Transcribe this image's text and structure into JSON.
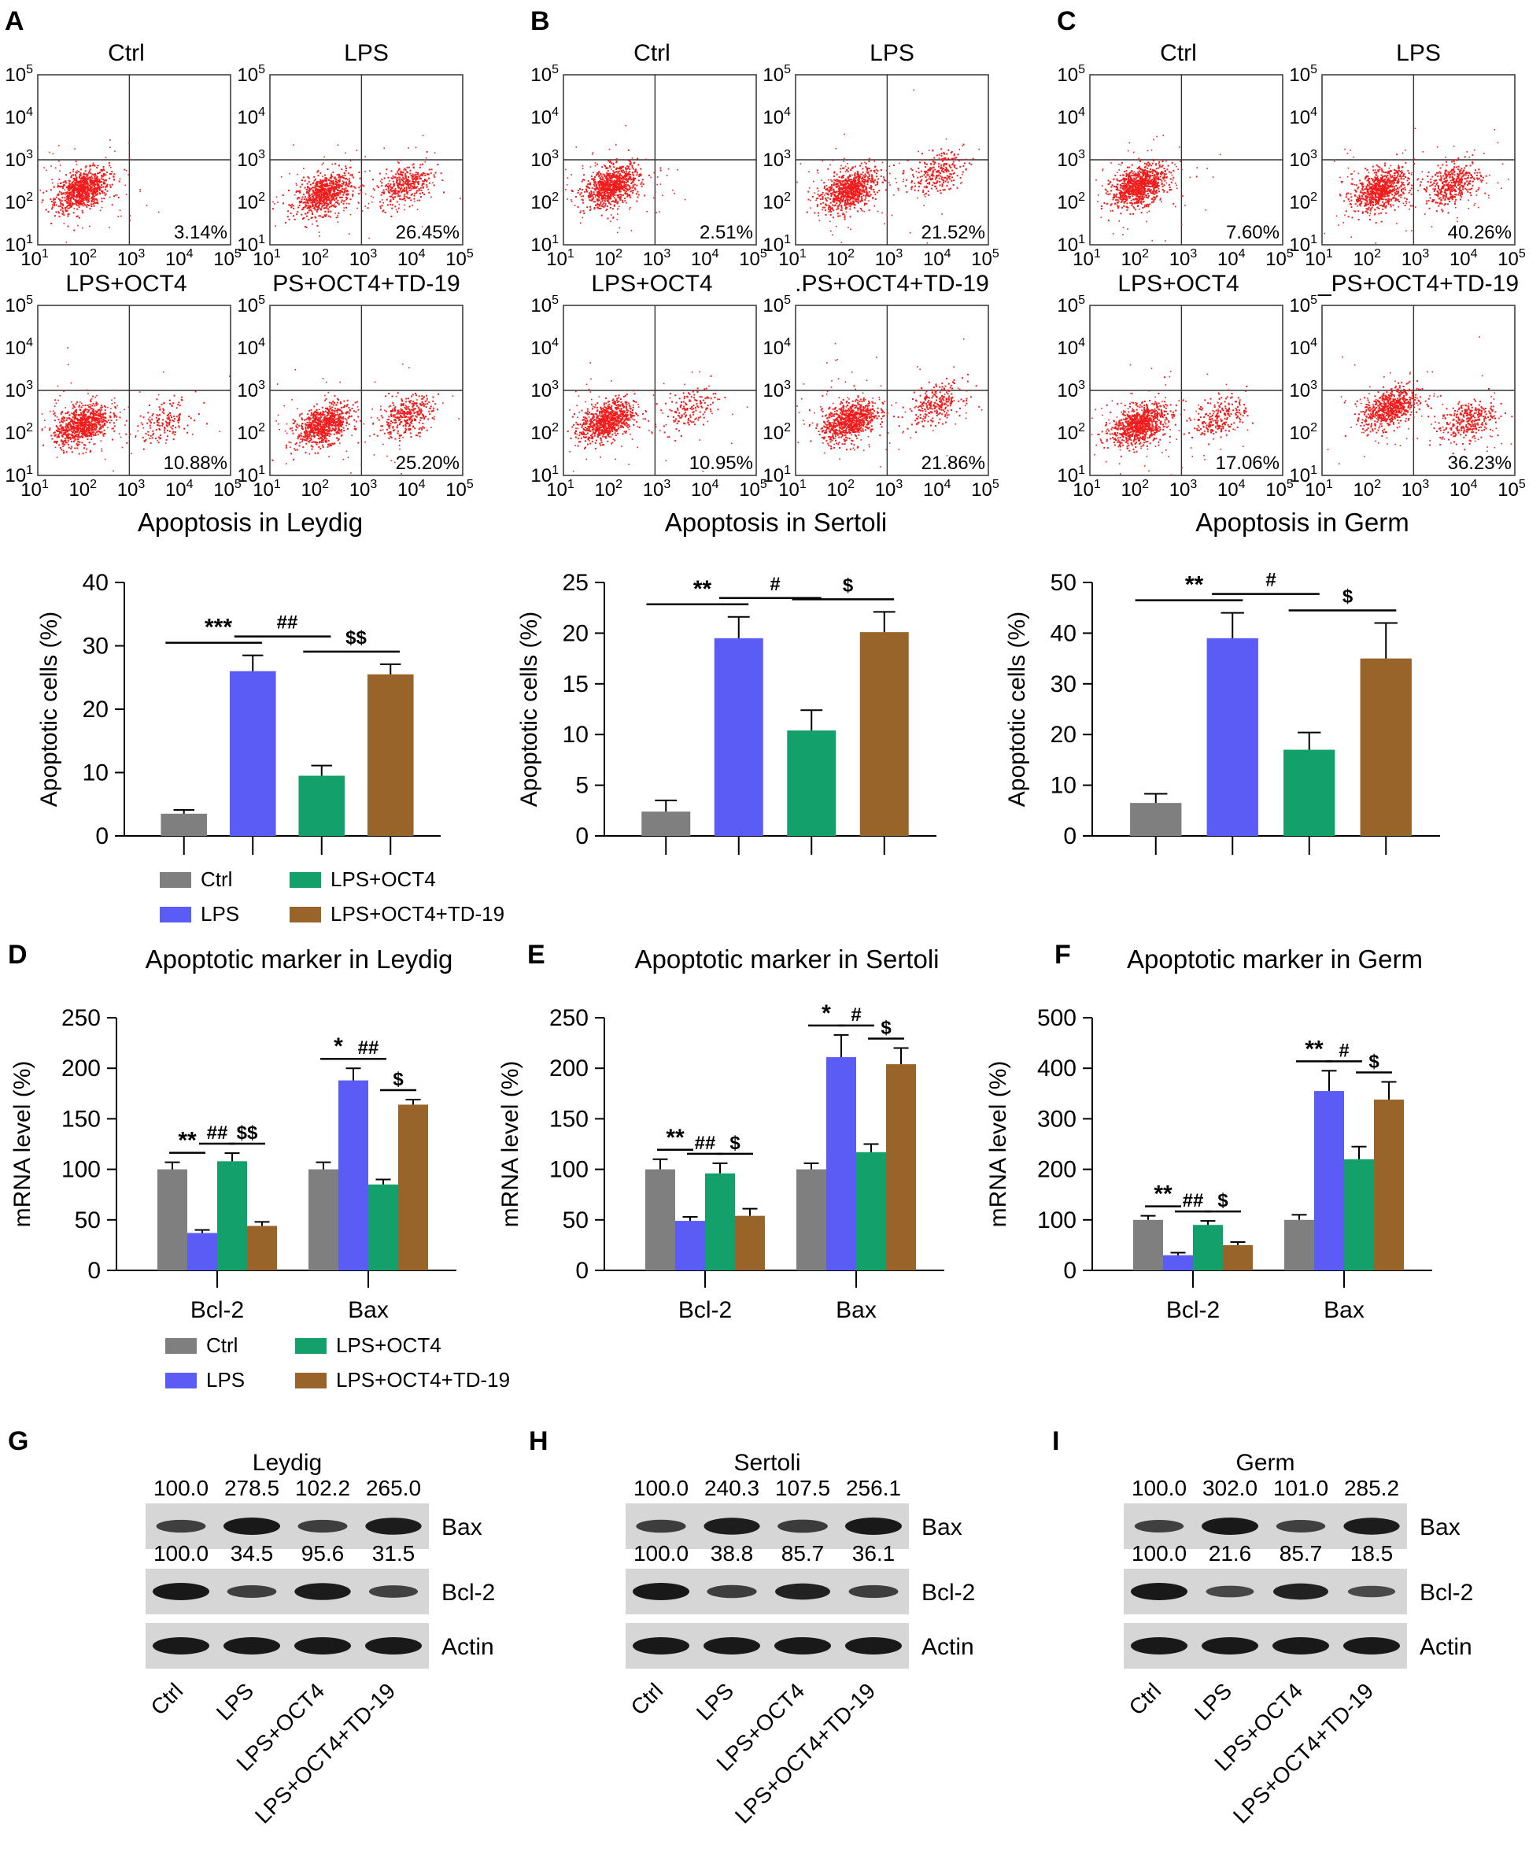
{
  "colors": {
    "ctrl": "#7f7f7f",
    "lps": "#5b5bf5",
    "oct4": "#13a06b",
    "td19": "#99642a",
    "dots": "#f01c1c"
  },
  "legend": {
    "ctrl": "Ctrl",
    "lps": "LPS",
    "oct4": "LPS+OCT4",
    "td19": "LPS+OCT4+TD-19"
  },
  "flow": {
    "panels": [
      {
        "letter": "A",
        "xlabel": "Apoptosis in Leydig",
        "plots": [
          {
            "title": "Ctrl",
            "pct": "3.14%",
            "clusters": [
              {
                "x": 1.9,
                "y": 2.3,
                "n": 800
              }
            ]
          },
          {
            "title": "LPS",
            "pct": "26.45%",
            "clusters": [
              {
                "x": 2.1,
                "y": 2.2,
                "n": 700
              },
              {
                "x": 3.8,
                "y": 2.45,
                "n": 350
              }
            ]
          },
          {
            "title": "LPS+OCT4",
            "pct": "10.88%",
            "clusters": [
              {
                "x": 1.9,
                "y": 2.2,
                "n": 750
              },
              {
                "x": 3.6,
                "y": 2.3,
                "n": 150
              }
            ]
          },
          {
            "title": "PS+OCT4+TD-19",
            "pct": "25.20%",
            "clusters": [
              {
                "x": 2.1,
                "y": 2.2,
                "n": 700
              },
              {
                "x": 3.8,
                "y": 2.4,
                "n": 320
              }
            ]
          }
        ]
      },
      {
        "letter": "B",
        "xlabel": "Apoptosis in Sertoli",
        "plots": [
          {
            "title": "Ctrl",
            "pct": "2.51%",
            "clusters": [
              {
                "x": 2.0,
                "y": 2.4,
                "n": 800
              }
            ]
          },
          {
            "title": "LPS",
            "pct": "21.52%",
            "clusters": [
              {
                "x": 2.1,
                "y": 2.3,
                "n": 750
              },
              {
                "x": 3.9,
                "y": 2.7,
                "n": 250
              }
            ]
          },
          {
            "title": "LPS+OCT4",
            "pct": "10.95%",
            "clusters": [
              {
                "x": 1.9,
                "y": 2.3,
                "n": 750
              },
              {
                "x": 3.6,
                "y": 2.6,
                "n": 150
              }
            ]
          },
          {
            "title": ".PS+OCT4+TD-19",
            "pct": "21.86%",
            "clusters": [
              {
                "x": 2.1,
                "y": 2.3,
                "n": 750
              },
              {
                "x": 3.9,
                "y": 2.7,
                "n": 250
              }
            ]
          }
        ]
      },
      {
        "letter": "C",
        "xlabel": "Apoptosis in Germ",
        "plots": [
          {
            "title": "Ctrl",
            "pct": "7.60%",
            "clusters": [
              {
                "x": 2.0,
                "y": 2.4,
                "n": 850
              }
            ]
          },
          {
            "title": "LPS",
            "pct": "40.26%",
            "clusters": [
              {
                "x": 2.2,
                "y": 2.3,
                "n": 700
              },
              {
                "x": 3.7,
                "y": 2.45,
                "n": 400
              }
            ]
          },
          {
            "title": "LPS+OCT4",
            "pct": "17.06%",
            "clusters": [
              {
                "x": 2.0,
                "y": 2.2,
                "n": 800
              },
              {
                "x": 3.7,
                "y": 2.4,
                "n": 220
              }
            ]
          },
          {
            "title": "_PS+OCT4+TD-19",
            "pct": "36.23%",
            "clusters": [
              {
                "x": 2.4,
                "y": 2.6,
                "n": 600
              },
              {
                "x": 4.0,
                "y": 2.3,
                "n": 300
              }
            ]
          }
        ]
      }
    ]
  },
  "chart_data": [
    {
      "type": "bar",
      "title": "",
      "ylabel": "Apoptotic cells (%)",
      "ylim": [
        0,
        40
      ],
      "yticks": [
        0,
        10,
        20,
        30,
        40
      ],
      "categories": [
        "Ctrl",
        "LPS",
        "LPS+OCT4",
        "LPS+OCT4+TD-19"
      ],
      "values": [
        3.5,
        26.0,
        9.5,
        25.5
      ],
      "errors": [
        0.6,
        2.5,
        1.6,
        1.6
      ],
      "sig": [
        {
          "from": 0,
          "to": 1,
          "text": "***"
        },
        {
          "from": 1,
          "to": 2,
          "text": "##"
        },
        {
          "from": 2,
          "to": 3,
          "text": "$$"
        }
      ]
    },
    {
      "type": "bar",
      "title": "",
      "ylabel": "Apoptotic cells (%)",
      "ylim": [
        0,
        25
      ],
      "yticks": [
        0,
        5,
        10,
        15,
        20,
        25
      ],
      "categories": [
        "Ctrl",
        "LPS",
        "LPS+OCT4",
        "LPS+OCT4+TD-19"
      ],
      "values": [
        2.4,
        19.5,
        10.4,
        20.1
      ],
      "errors": [
        1.1,
        2.1,
        2.0,
        2.0
      ],
      "sig": [
        {
          "from": 0,
          "to": 1,
          "text": "**"
        },
        {
          "from": 1,
          "to": 2,
          "text": "#"
        },
        {
          "from": 2,
          "to": 3,
          "text": "$"
        }
      ]
    },
    {
      "type": "bar",
      "title": "",
      "ylabel": "Apoptotic cells (%)",
      "ylim": [
        0,
        50
      ],
      "yticks": [
        0,
        10,
        20,
        30,
        40,
        50
      ],
      "categories": [
        "Ctrl",
        "LPS",
        "LPS+OCT4",
        "LPS+OCT4+TD-19"
      ],
      "values": [
        6.5,
        39.0,
        17.0,
        35.0
      ],
      "errors": [
        1.8,
        5.0,
        3.4,
        7.0
      ],
      "sig": [
        {
          "from": 0,
          "to": 1,
          "text": "**"
        },
        {
          "from": 1,
          "to": 2,
          "text": "#"
        },
        {
          "from": 2,
          "to": 3,
          "text": "$"
        }
      ]
    },
    {
      "type": "bar",
      "letter": "D",
      "title": "Apoptotic marker in Leydig",
      "ylabel": "mRNA level (%)",
      "ylim": [
        0,
        250
      ],
      "yticks": [
        0,
        50,
        100,
        150,
        200,
        250
      ],
      "categories": [
        "Bcl-2",
        "Bax"
      ],
      "series": [
        {
          "name": "Ctrl",
          "values": [
            100,
            100
          ],
          "errors": [
            7,
            7
          ]
        },
        {
          "name": "LPS",
          "values": [
            37,
            188
          ],
          "errors": [
            3,
            12
          ]
        },
        {
          "name": "LPS+OCT4",
          "values": [
            108,
            85
          ],
          "errors": [
            8,
            5
          ]
        },
        {
          "name": "LPS+OCT4+TD-19",
          "values": [
            44,
            164
          ],
          "errors": [
            4,
            5
          ]
        }
      ],
      "sig": [
        {
          "group": 0,
          "from": 0,
          "to": 1,
          "text": "**"
        },
        {
          "group": 0,
          "from": 1,
          "to": 2,
          "text": "##"
        },
        {
          "group": 0,
          "from": 2,
          "to": 3,
          "text": "$$"
        },
        {
          "group": 1,
          "from": 0,
          "to": 1,
          "text": "*"
        },
        {
          "group": 1,
          "from": 1,
          "to": 2,
          "text": "##"
        },
        {
          "group": 1,
          "from": 2,
          "to": 3,
          "text": "$"
        }
      ]
    },
    {
      "type": "bar",
      "letter": "E",
      "title": "Apoptotic marker in Sertoli",
      "ylabel": "mRNA level (%)",
      "ylim": [
        0,
        250
      ],
      "yticks": [
        0,
        50,
        100,
        150,
        200,
        250
      ],
      "categories": [
        "Bcl-2",
        "Bax"
      ],
      "series": [
        {
          "name": "Ctrl",
          "values": [
            100,
            100
          ],
          "errors": [
            10,
            6
          ]
        },
        {
          "name": "LPS",
          "values": [
            49,
            211
          ],
          "errors": [
            4,
            22
          ]
        },
        {
          "name": "LPS+OCT4",
          "values": [
            96,
            117
          ],
          "errors": [
            10,
            8
          ]
        },
        {
          "name": "LPS+OCT4+TD-19",
          "values": [
            54,
            204
          ],
          "errors": [
            7,
            16
          ]
        }
      ],
      "sig": [
        {
          "group": 0,
          "from": 0,
          "to": 1,
          "text": "**"
        },
        {
          "group": 0,
          "from": 1,
          "to": 2,
          "text": "##"
        },
        {
          "group": 0,
          "from": 2,
          "to": 3,
          "text": "$"
        },
        {
          "group": 1,
          "from": 0,
          "to": 1,
          "text": "*"
        },
        {
          "group": 1,
          "from": 1,
          "to": 2,
          "text": "#"
        },
        {
          "group": 1,
          "from": 2,
          "to": 3,
          "text": "$"
        }
      ]
    },
    {
      "type": "bar",
      "letter": "F",
      "title": "Apoptotic marker in Germ",
      "ylabel": "mRNA level (%)",
      "ylim": [
        0,
        500
      ],
      "yticks": [
        0,
        100,
        200,
        300,
        400,
        500
      ],
      "categories": [
        "Bcl-2",
        "Bax"
      ],
      "series": [
        {
          "name": "Ctrl",
          "values": [
            100,
            100
          ],
          "errors": [
            8,
            10
          ]
        },
        {
          "name": "LPS",
          "values": [
            30,
            355
          ],
          "errors": [
            5,
            40
          ]
        },
        {
          "name": "LPS+OCT4",
          "values": [
            90,
            220
          ],
          "errors": [
            8,
            25
          ]
        },
        {
          "name": "LPS+OCT4+TD-19",
          "values": [
            50,
            338
          ],
          "errors": [
            6,
            35
          ]
        }
      ],
      "sig": [
        {
          "group": 0,
          "from": 0,
          "to": 1,
          "text": "**"
        },
        {
          "group": 0,
          "from": 1,
          "to": 2,
          "text": "##"
        },
        {
          "group": 0,
          "from": 2,
          "to": 3,
          "text": "$"
        },
        {
          "group": 1,
          "from": 0,
          "to": 1,
          "text": "**"
        },
        {
          "group": 1,
          "from": 1,
          "to": 2,
          "text": "#"
        },
        {
          "group": 1,
          "from": 2,
          "to": 3,
          "text": "$"
        }
      ]
    }
  ],
  "blots": [
    {
      "letter": "G",
      "title": "Leydig",
      "bax": [
        "100.0",
        "278.5",
        "102.2",
        "265.0"
      ],
      "bcl2": [
        "100.0",
        "34.5",
        "95.6",
        "31.5"
      ],
      "bands": [
        "Bax",
        "Bcl-2",
        "Actin"
      ],
      "lanes": [
        "Ctrl",
        "LPS",
        "LPS+OCT4",
        "LPS+OCT4+TD-19"
      ]
    },
    {
      "letter": "H",
      "title": "Sertoli",
      "bax": [
        "100.0",
        "240.3",
        "107.5",
        "256.1"
      ],
      "bcl2": [
        "100.0",
        "38.8",
        "85.7",
        "36.1"
      ],
      "bands": [
        "Bax",
        "Bcl-2",
        "Actin"
      ],
      "lanes": [
        "Ctrl",
        "LPS",
        "LPS+OCT4",
        "LPS+OCT4+TD-19"
      ]
    },
    {
      "letter": "I",
      "title": "Germ",
      "bax": [
        "100.0",
        "302.0",
        "101.0",
        "285.2"
      ],
      "bcl2": [
        "100.0",
        "21.6",
        "85.7",
        "18.5"
      ],
      "bands": [
        "Bax",
        "Bcl-2",
        "Actin"
      ],
      "lanes": [
        "Ctrl",
        "LPS",
        "LPS+OCT4",
        "LPS+OCT4+TD-19"
      ]
    }
  ]
}
